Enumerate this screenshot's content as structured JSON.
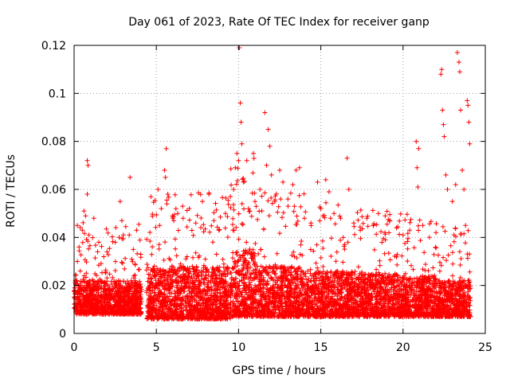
{
  "chart_data": {
    "type": "scatter",
    "title": "Day 061 of 2023, Rate Of TEC Index for receiver ganp",
    "xlabel": "GPS time / hours",
    "ylabel": "ROTI / TECUs",
    "xlim": [
      0,
      25
    ],
    "ylim": [
      0,
      0.12
    ],
    "xticks": [
      0,
      5,
      10,
      15,
      20,
      25
    ],
    "yticks": [
      0,
      0.02,
      0.04,
      0.06,
      0.08,
      0.1,
      0.12
    ],
    "xtick_labels": [
      "0",
      "5",
      "10",
      "15",
      "20",
      "25"
    ],
    "ytick_labels": [
      "0",
      "0.02",
      "0.04",
      "0.06",
      "0.08",
      "0.1",
      "0.12"
    ],
    "grid": true,
    "marker": "+",
    "color": "#ff0000",
    "data_gap_hours": [
      4.1,
      4.4
    ],
    "series": [
      {
        "name": "ROTI",
        "points": [
          [
            0.8,
            0.072
          ],
          [
            0.85,
            0.07
          ],
          [
            0.8,
            0.058
          ],
          [
            0.6,
            0.051
          ],
          [
            0.7,
            0.049
          ],
          [
            0.5,
            0.043
          ],
          [
            0.9,
            0.041
          ],
          [
            1.2,
            0.048
          ],
          [
            0.3,
            0.036
          ],
          [
            1.5,
            0.038
          ],
          [
            2.0,
            0.034
          ],
          [
            2.8,
            0.055
          ],
          [
            2.9,
            0.047
          ],
          [
            3.4,
            0.065
          ],
          [
            3.8,
            0.043
          ],
          [
            3.0,
            0.041
          ],
          [
            2.5,
            0.038
          ],
          [
            1.8,
            0.032
          ],
          [
            0.2,
            0.03
          ],
          [
            3.6,
            0.035
          ],
          [
            5.1,
            0.06
          ],
          [
            5.3,
            0.052
          ],
          [
            5.5,
            0.068
          ],
          [
            5.55,
            0.065
          ],
          [
            5.6,
            0.077
          ],
          [
            5.7,
            0.058
          ],
          [
            5.2,
            0.045
          ],
          [
            6.0,
            0.048
          ],
          [
            6.3,
            0.05
          ],
          [
            6.6,
            0.053
          ],
          [
            7.0,
            0.052
          ],
          [
            7.4,
            0.046
          ],
          [
            7.8,
            0.055
          ],
          [
            8.2,
            0.058
          ],
          [
            8.5,
            0.047
          ],
          [
            8.8,
            0.043
          ],
          [
            9.2,
            0.05
          ],
          [
            9.5,
            0.057
          ],
          [
            9.7,
            0.06
          ],
          [
            9.8,
            0.069
          ],
          [
            9.9,
            0.075
          ],
          [
            10.0,
            0.072
          ],
          [
            10.05,
            0.119
          ],
          [
            10.1,
            0.096
          ],
          [
            10.15,
            0.088
          ],
          [
            10.2,
            0.079
          ],
          [
            10.3,
            0.063
          ],
          [
            10.5,
            0.072
          ],
          [
            10.6,
            0.052
          ],
          [
            10.9,
            0.075
          ],
          [
            11.0,
            0.055
          ],
          [
            11.3,
            0.06
          ],
          [
            11.6,
            0.092
          ],
          [
            11.8,
            0.085
          ],
          [
            11.9,
            0.078
          ],
          [
            12.0,
            0.066
          ],
          [
            11.7,
            0.07
          ],
          [
            12.2,
            0.055
          ],
          [
            12.5,
            0.068
          ],
          [
            12.7,
            0.063
          ],
          [
            13.0,
            0.056
          ],
          [
            13.3,
            0.062
          ],
          [
            13.5,
            0.068
          ],
          [
            13.7,
            0.069
          ],
          [
            14.0,
            0.048
          ],
          [
            14.4,
            0.046
          ],
          [
            14.8,
            0.063
          ],
          [
            15.0,
            0.052
          ],
          [
            15.3,
            0.064
          ],
          [
            15.5,
            0.059
          ],
          [
            15.8,
            0.05
          ],
          [
            16.2,
            0.048
          ],
          [
            16.6,
            0.073
          ],
          [
            16.7,
            0.06
          ],
          [
            17.0,
            0.046
          ],
          [
            17.4,
            0.043
          ],
          [
            17.8,
            0.048
          ],
          [
            18.2,
            0.045
          ],
          [
            18.5,
            0.05
          ],
          [
            18.9,
            0.042
          ],
          [
            19.2,
            0.047
          ],
          [
            19.6,
            0.044
          ],
          [
            20.0,
            0.041
          ],
          [
            20.4,
            0.043
          ],
          [
            20.8,
            0.08
          ],
          [
            20.85,
            0.069
          ],
          [
            20.9,
            0.061
          ],
          [
            20.95,
            0.077
          ],
          [
            21.2,
            0.045
          ],
          [
            21.6,
            0.04
          ],
          [
            22.0,
            0.042
          ],
          [
            22.3,
            0.108
          ],
          [
            22.35,
            0.11
          ],
          [
            22.4,
            0.093
          ],
          [
            22.45,
            0.087
          ],
          [
            22.5,
            0.082
          ],
          [
            22.6,
            0.066
          ],
          [
            22.7,
            0.06
          ],
          [
            23.0,
            0.055
          ],
          [
            23.2,
            0.062
          ],
          [
            23.3,
            0.117
          ],
          [
            23.4,
            0.113
          ],
          [
            23.45,
            0.109
          ],
          [
            23.5,
            0.093
          ],
          [
            23.6,
            0.068
          ],
          [
            23.7,
            0.06
          ],
          [
            23.8,
            0.045
          ],
          [
            23.9,
            0.097
          ],
          [
            23.95,
            0.095
          ],
          [
            24.0,
            0.088
          ],
          [
            24.05,
            0.079
          ]
        ],
        "density_profile": {
          "description": "Dense band of ROTI values across the day (hours, typical min, typical max)",
          "bands": [
            [
              0.0,
              4.1,
              0.008,
              0.022
            ],
            [
              4.4,
              9.5,
              0.006,
              0.028
            ],
            [
              9.5,
              11.0,
              0.007,
              0.035
            ],
            [
              11.0,
              14.0,
              0.007,
              0.028
            ],
            [
              14.0,
              17.0,
              0.007,
              0.026
            ],
            [
              17.0,
              20.5,
              0.007,
              0.025
            ],
            [
              20.5,
              22.0,
              0.007,
              0.024
            ],
            [
              22.0,
              24.1,
              0.007,
              0.022
            ]
          ]
        }
      }
    ]
  }
}
